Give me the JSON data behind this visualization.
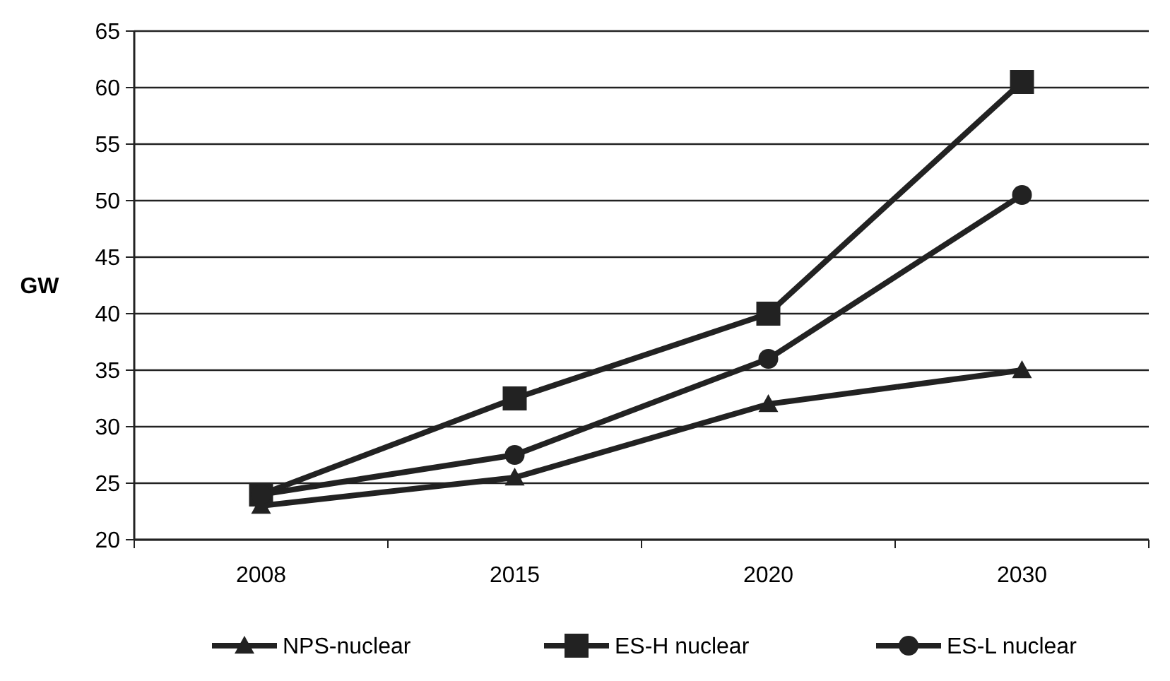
{
  "chart_data": {
    "type": "line",
    "ylabel": "GW",
    "categories": [
      "2008",
      "2015",
      "2020",
      "2030"
    ],
    "series": [
      {
        "name": "NPS-nuclear",
        "color": "#222222",
        "marker": "triangle",
        "values": [
          23,
          25.5,
          32,
          35
        ]
      },
      {
        "name": "ES-H nuclear",
        "color": "#222222",
        "marker": "square",
        "values": [
          24,
          32.5,
          40,
          60.5
        ]
      },
      {
        "name": "ES-L nuclear",
        "color": "#222222",
        "marker": "circle",
        "values": [
          24,
          27.5,
          36,
          50.5
        ]
      }
    ],
    "ylim": [
      20,
      65
    ],
    "yticks": [
      20,
      25,
      30,
      35,
      40,
      45,
      50,
      55,
      60,
      65
    ],
    "grid": "y",
    "legend": "bottom",
    "line_style": "solid"
  }
}
